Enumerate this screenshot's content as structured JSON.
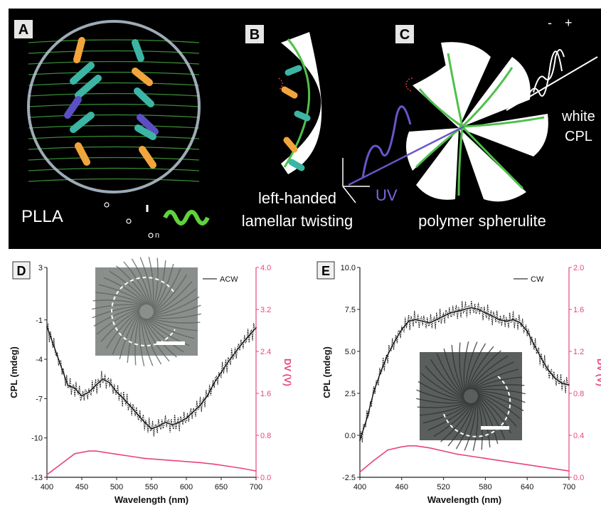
{
  "panels": {
    "A": {
      "letter": "A",
      "caption": "PLLA",
      "formula_subscript": "n"
    },
    "B": {
      "letter": "B",
      "caption_line1": "left-handed",
      "caption_line2": "lamellar twisting"
    },
    "C": {
      "letter": "C",
      "caption": "polymer spherulite",
      "uv_label": "UV",
      "output_line1": "white",
      "output_line2": "CPL",
      "minus_sign": "-",
      "plus_sign": "+"
    }
  },
  "colors": {
    "lamella_green": "#4fc04a",
    "rod_orange": "#f2a53c",
    "rod_teal": "#3cb5a4",
    "pink_dv": "#e8457c",
    "uv_purple": "#6a55c8",
    "black_bg": "#000000"
  },
  "chart_data": [
    {
      "type": "line",
      "letter": "D",
      "xlabel": "Wavelength (nm)",
      "ylabel": "CPL (mdeg)",
      "y2label": "DV (V)",
      "xlim": [
        400,
        700
      ],
      "ylim": [
        -13,
        3
      ],
      "y2lim": [
        0.0,
        4.0
      ],
      "xticks": [
        400,
        450,
        500,
        550,
        600,
        650,
        700
      ],
      "yticks": [
        3,
        -1,
        -4,
        -7,
        -10,
        -13
      ],
      "y2ticks": [
        "0.0",
        "0.8",
        "1.6",
        "2.4",
        "3.2",
        "4.0"
      ],
      "legend": "ACW",
      "inset_rotation": "counterclockwise",
      "series": [
        {
          "name": "ACW",
          "x": [
            400,
            410,
            420,
            430,
            440,
            450,
            460,
            470,
            480,
            490,
            500,
            510,
            520,
            530,
            540,
            550,
            560,
            570,
            580,
            590,
            600,
            610,
            620,
            630,
            640,
            650,
            660,
            670,
            680,
            690,
            700
          ],
          "y": [
            -1.5,
            -3.0,
            -4.5,
            -6.0,
            -6.2,
            -6.8,
            -6.5,
            -6.0,
            -5.5,
            -5.8,
            -6.5,
            -7.0,
            -7.6,
            -8.2,
            -8.8,
            -9.3,
            -9.1,
            -8.8,
            -9.0,
            -8.8,
            -8.5,
            -8.0,
            -7.5,
            -6.8,
            -5.8,
            -5.0,
            -4.2,
            -3.5,
            -2.8,
            -2.2,
            -1.6
          ]
        },
        {
          "name": "DV",
          "x": [
            400,
            420,
            440,
            460,
            470,
            480,
            500,
            520,
            540,
            560,
            580,
            600,
            620,
            640,
            660,
            680,
            700
          ],
          "y": [
            0.05,
            0.25,
            0.45,
            0.5,
            0.5,
            0.48,
            0.44,
            0.4,
            0.36,
            0.34,
            0.32,
            0.3,
            0.28,
            0.25,
            0.21,
            0.17,
            0.12
          ]
        }
      ]
    },
    {
      "type": "line",
      "letter": "E",
      "xlabel": "Wavelength (nm)",
      "ylabel": "CPL (mdeg)",
      "y2label": "DV (V)",
      "xlim": [
        400,
        700
      ],
      "ylim": [
        -2.5,
        10.0
      ],
      "y2lim": [
        0.0,
        2.0
      ],
      "xticks": [
        400,
        460,
        520,
        580,
        640,
        700
      ],
      "yticks": [
        "10.0",
        "7.5",
        "5.0",
        "2.5",
        "0.0",
        "-2.5"
      ],
      "y2ticks": [
        "0.0",
        "0.4",
        "0.8",
        "1.2",
        "1.6",
        "2.0"
      ],
      "legend": "CW",
      "inset_rotation": "clockwise",
      "series": [
        {
          "name": "CW",
          "x": [
            400,
            410,
            420,
            430,
            440,
            450,
            460,
            470,
            480,
            490,
            500,
            510,
            520,
            530,
            540,
            550,
            560,
            570,
            580,
            590,
            600,
            610,
            620,
            630,
            640,
            650,
            660,
            670,
            680,
            690,
            700
          ],
          "y": [
            -0.3,
            1.0,
            2.6,
            3.8,
            4.8,
            5.6,
            6.3,
            6.8,
            6.9,
            6.8,
            6.7,
            6.9,
            7.1,
            7.3,
            7.4,
            7.5,
            7.6,
            7.5,
            7.3,
            7.1,
            6.9,
            6.8,
            6.9,
            6.7,
            6.2,
            5.4,
            4.6,
            3.9,
            3.4,
            3.1,
            3.0
          ]
        },
        {
          "name": "DV",
          "x": [
            400,
            420,
            440,
            460,
            470,
            480,
            500,
            520,
            540,
            560,
            580,
            600,
            620,
            640,
            660,
            680,
            700
          ],
          "y": [
            0.05,
            0.16,
            0.26,
            0.29,
            0.3,
            0.3,
            0.28,
            0.25,
            0.22,
            0.2,
            0.18,
            0.16,
            0.14,
            0.12,
            0.1,
            0.08,
            0.06
          ]
        }
      ]
    }
  ]
}
